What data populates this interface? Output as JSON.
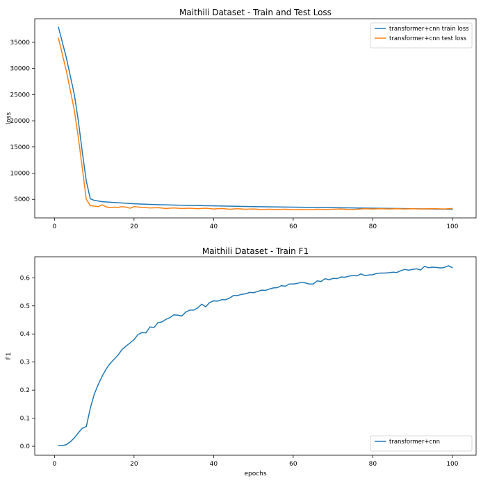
{
  "chart_data": [
    {
      "type": "line",
      "title": "Maithili Dataset - Train and Test Loss",
      "xlabel": "",
      "ylabel": "loss",
      "xlim": [
        -4.95,
        105.95
      ],
      "ylim": [
        1450,
        39500
      ],
      "xticks": [
        0,
        20,
        40,
        60,
        80,
        100
      ],
      "yticks": [
        5000,
        10000,
        15000,
        20000,
        25000,
        30000,
        35000
      ],
      "legend_position": "upper right",
      "grid": false,
      "series": [
        {
          "name": "transformer+cnn train loss",
          "color": "#1f77b4",
          "x": [
            1,
            3,
            5,
            6,
            7,
            8,
            9,
            10,
            12,
            15,
            20,
            25,
            30,
            40,
            50,
            60,
            70,
            80,
            90,
            100
          ],
          "y": [
            37900,
            32000,
            25000,
            20000,
            14000,
            8500,
            5100,
            4800,
            4550,
            4400,
            4150,
            4000,
            3900,
            3750,
            3600,
            3500,
            3400,
            3300,
            3200,
            3100
          ]
        },
        {
          "name": "transformer+cnn test loss",
          "color": "#ff7f0e",
          "x": [
            1,
            3,
            5,
            6,
            7,
            8,
            9,
            10,
            11,
            12,
            13,
            14,
            15,
            16,
            17,
            18,
            19,
            20,
            22,
            24,
            26,
            28,
            30,
            32,
            34,
            36,
            38,
            40,
            42,
            44,
            46,
            48,
            50,
            52,
            54,
            56,
            58,
            60,
            62,
            64,
            66,
            68,
            70,
            72,
            74,
            76,
            78,
            80,
            82,
            84,
            86,
            88,
            90,
            92,
            94,
            96,
            98,
            100
          ],
          "y": [
            35800,
            29500,
            22000,
            16800,
            11000,
            5000,
            3800,
            3700,
            3600,
            3950,
            3550,
            3400,
            3500,
            3450,
            3600,
            3500,
            3300,
            3600,
            3450,
            3350,
            3400,
            3250,
            3350,
            3250,
            3300,
            3200,
            3300,
            3150,
            3250,
            3100,
            3200,
            3100,
            3150,
            3050,
            3100,
            3050,
            3100,
            3000,
            3050,
            3000,
            3100,
            3050,
            3100,
            3150,
            3050,
            3100,
            3200,
            3150,
            3200,
            3150,
            3200,
            3150,
            3200,
            3150,
            3200,
            3200,
            3150,
            3250
          ]
        }
      ]
    },
    {
      "type": "line",
      "title": "Maithili Dataset - Train F1",
      "xlabel": "epochs",
      "ylabel": "F1",
      "xlim": [
        -4.95,
        105.95
      ],
      "ylim": [
        -0.032,
        0.675
      ],
      "xticks": [
        0,
        20,
        40,
        60,
        80,
        100
      ],
      "yticks": [
        0.0,
        0.1,
        0.2,
        0.3,
        0.4,
        0.5,
        0.6
      ],
      "ytick_labels": [
        "0.0",
        "0.1",
        "0.2",
        "0.3",
        "0.4",
        "0.5",
        "0.6"
      ],
      "legend_position": "lower right",
      "grid": false,
      "series": [
        {
          "name": "transformer+cnn",
          "color": "#1f77b4",
          "x": [
            1,
            2,
            3,
            4,
            5,
            6,
            7,
            8,
            9,
            10,
            11,
            12,
            13,
            14,
            15,
            16,
            17,
            18,
            19,
            20,
            21,
            22,
            23,
            24,
            25,
            26,
            27,
            28,
            29,
            30,
            31,
            32,
            33,
            34,
            35,
            36,
            37,
            38,
            39,
            40,
            41,
            42,
            43,
            44,
            45,
            46,
            47,
            48,
            49,
            50,
            51,
            52,
            53,
            54,
            55,
            56,
            57,
            58,
            59,
            60,
            61,
            62,
            63,
            64,
            65,
            66,
            67,
            68,
            69,
            70,
            71,
            72,
            73,
            74,
            75,
            76,
            77,
            78,
            79,
            80,
            81,
            82,
            83,
            84,
            85,
            86,
            87,
            88,
            89,
            90,
            91,
            92,
            93,
            94,
            95,
            96,
            97,
            98,
            99,
            100
          ],
          "y": [
            0.002,
            0.002,
            0.006,
            0.016,
            0.03,
            0.048,
            0.064,
            0.07,
            0.135,
            0.185,
            0.22,
            0.25,
            0.275,
            0.295,
            0.31,
            0.325,
            0.345,
            0.357,
            0.368,
            0.38,
            0.398,
            0.405,
            0.404,
            0.425,
            0.423,
            0.44,
            0.443,
            0.452,
            0.458,
            0.468,
            0.467,
            0.464,
            0.478,
            0.485,
            0.485,
            0.493,
            0.506,
            0.497,
            0.512,
            0.518,
            0.517,
            0.522,
            0.522,
            0.528,
            0.537,
            0.537,
            0.541,
            0.543,
            0.548,
            0.547,
            0.551,
            0.556,
            0.555,
            0.56,
            0.564,
            0.565,
            0.572,
            0.57,
            0.578,
            0.578,
            0.58,
            0.584,
            0.582,
            0.578,
            0.578,
            0.589,
            0.587,
            0.597,
            0.593,
            0.598,
            0.597,
            0.603,
            0.602,
            0.606,
            0.608,
            0.607,
            0.614,
            0.608,
            0.61,
            0.611,
            0.616,
            0.617,
            0.617,
            0.618,
            0.62,
            0.619,
            0.625,
            0.63,
            0.627,
            0.63,
            0.632,
            0.628,
            0.641,
            0.636,
            0.638,
            0.637,
            0.635,
            0.637,
            0.643,
            0.636
          ]
        }
      ]
    }
  ]
}
